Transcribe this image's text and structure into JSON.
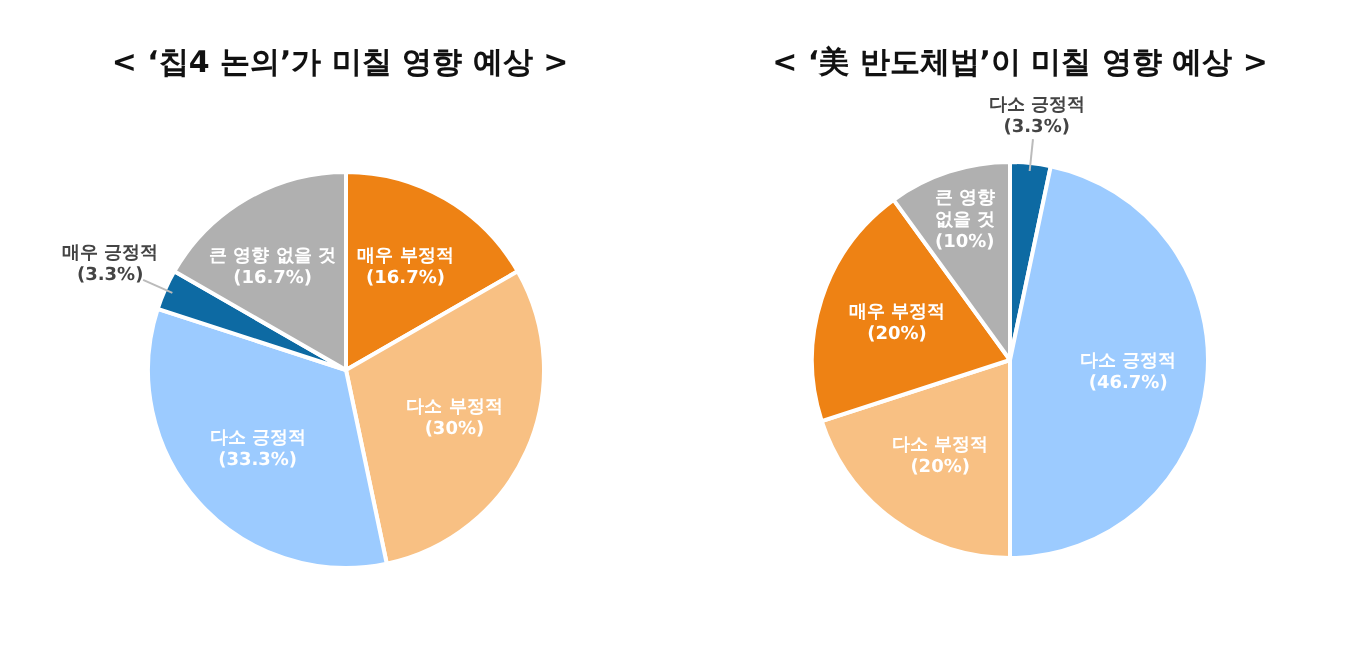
{
  "chart_data": [
    {
      "type": "pie",
      "title": "< ‘칩4 논의’가 미칠 영향 예상 >",
      "categories": [
        "매우 부정적",
        "다소 부정적",
        "다소 긍정적",
        "매우 긍정적",
        "큰 영향 없을 것"
      ],
      "values": [
        16.7,
        30,
        33.3,
        3.3,
        16.7
      ],
      "colors": [
        "#ee8214",
        "#f8c083",
        "#9ccbff",
        "#0d6aa3",
        "#b0b0b0"
      ],
      "value_labels": [
        "(16.7%)",
        "(30%)",
        "(33.3%)",
        "(3.3%)",
        "(16.7%)"
      ]
    },
    {
      "type": "pie",
      "title": "< ‘美 반도체법’이 미칠 영향 예상 >",
      "categories": [
        "다소 긍정적",
        "다소 긍정적",
        "다소 부정적",
        "매우 부정적",
        "큰 영향 없을 것"
      ],
      "values": [
        3.3,
        46.7,
        20,
        20,
        10
      ],
      "colors": [
        "#0d6aa3",
        "#9ccbff",
        "#f8c083",
        "#ee8214",
        "#b0b0b0"
      ],
      "value_labels": [
        "(3.3%)",
        "(46.7%)",
        "(20%)",
        "(20%)",
        "(10%)"
      ]
    }
  ]
}
